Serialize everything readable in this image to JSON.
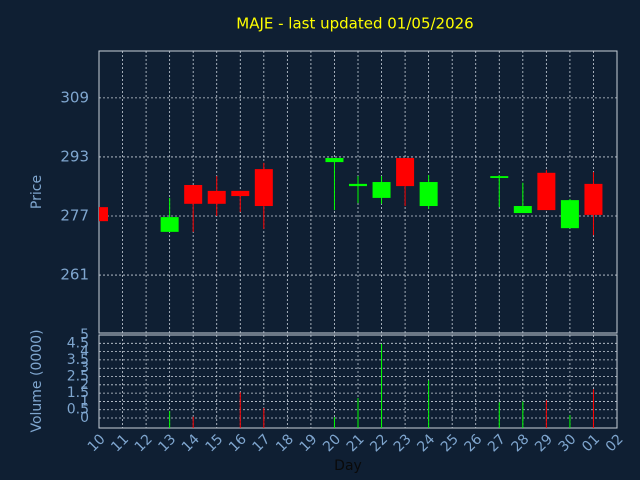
{
  "chart_data": [
    {
      "type": "candlestick",
      "title": "MAJE - last updated 01/05/2026",
      "y_label": "Price",
      "open": [
        279.4,
        null,
        null,
        272.7,
        285.4,
        283.8,
        283.8,
        289.7,
        null,
        null,
        291.6,
        285.1,
        281.9,
        292.7,
        279.7,
        null,
        null,
        287.3,
        277.8,
        288.7,
        273.7,
        285.7,
        null
      ],
      "high": [
        279.4,
        null,
        null,
        281.9,
        285.4,
        287.8,
        283.8,
        291.4,
        null,
        null,
        292.7,
        287.8,
        287.8,
        292.7,
        288.1,
        null,
        null,
        288.1,
        286.0,
        289.5,
        281.6,
        288.9,
        null
      ],
      "low": [
        275.6,
        null,
        null,
        272.7,
        272.7,
        277.0,
        278.1,
        273.5,
        null,
        null,
        278.6,
        280.5,
        280.3,
        279.7,
        278.9,
        null,
        null,
        279.4,
        277.8,
        278.6,
        273.7,
        271.8,
        null
      ],
      "close": [
        275.6,
        null,
        null,
        276.7,
        280.3,
        280.3,
        282.4,
        279.7,
        null,
        null,
        292.7,
        285.7,
        286.2,
        285.1,
        286.2,
        null,
        null,
        287.8,
        279.7,
        278.6,
        281.3,
        277.3,
        null
      ],
      "up_color": "#00ff00",
      "down_color": "#ff0000",
      "ylim": [
        245.3,
        321.7
      ],
      "yticks": [
        261,
        277,
        293,
        309
      ],
      "grid": true
    },
    {
      "type": "bar",
      "x_label": "Day",
      "y_label": "Volume (0000)",
      "categories": [
        "10",
        "11",
        "12",
        "13",
        "14",
        "15",
        "16",
        "17",
        "18",
        "19",
        "20",
        "21",
        "22",
        "23",
        "24",
        "25",
        "26",
        "27",
        "28",
        "29",
        "30",
        "01",
        "02"
      ],
      "values": [
        null,
        null,
        null,
        0.42,
        0.08,
        null,
        1.55,
        0.6,
        null,
        null,
        0.05,
        1.2,
        4.46,
        null,
        2.26,
        null,
        null,
        0.95,
        1.0,
        1.07,
        0.18,
        1.73,
        null
      ],
      "ylim": [
        -0.6,
        5
      ],
      "yticks": [
        0,
        0.5,
        1,
        1.5,
        2,
        2.5,
        3,
        3.5,
        4,
        4.5,
        5
      ],
      "grid": true
    }
  ]
}
